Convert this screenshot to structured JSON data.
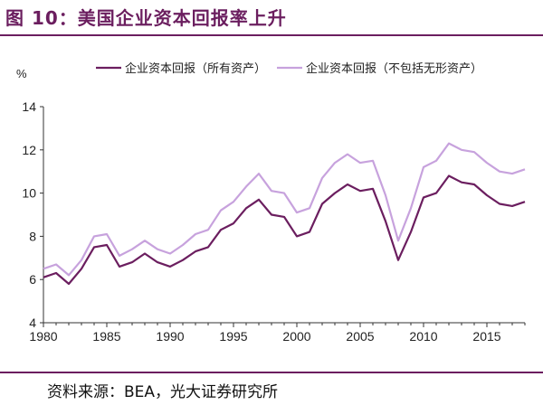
{
  "header": {
    "title": "图 10：美国企业资本回报率上升"
  },
  "footer": {
    "source": "资料来源：BEA，光大证券研究所"
  },
  "colors": {
    "accent": "#6b1e5f",
    "series1": "#6b1e5f",
    "series2": "#c7a2dd"
  },
  "chart_data": {
    "type": "line",
    "ylabel": "%",
    "xlim": [
      1980,
      2018
    ],
    "ylim": [
      4,
      14
    ],
    "yticks": [
      4,
      6,
      8,
      10,
      12,
      14
    ],
    "xticks": [
      1980,
      1985,
      1990,
      1995,
      2000,
      2005,
      2010,
      2015
    ],
    "grid": false,
    "legend": "top",
    "x": [
      1980,
      1981,
      1982,
      1983,
      1984,
      1985,
      1986,
      1987,
      1988,
      1989,
      1990,
      1991,
      1992,
      1993,
      1994,
      1995,
      1996,
      1997,
      1998,
      1999,
      2000,
      2001,
      2002,
      2003,
      2004,
      2005,
      2006,
      2007,
      2008,
      2009,
      2010,
      2011,
      2012,
      2013,
      2014,
      2015,
      2016,
      2017,
      2018
    ],
    "series": [
      {
        "name": "企业资本回报（所有资产）",
        "values": [
          6.1,
          6.3,
          5.8,
          6.5,
          7.5,
          7.6,
          6.6,
          6.8,
          7.2,
          6.8,
          6.6,
          6.9,
          7.3,
          7.5,
          8.3,
          8.6,
          9.3,
          9.7,
          9.0,
          8.9,
          8.0,
          8.2,
          9.5,
          10.0,
          10.4,
          10.1,
          10.2,
          8.7,
          6.9,
          8.2,
          9.8,
          10.0,
          10.8,
          10.5,
          10.4,
          9.9,
          9.5,
          9.4,
          9.6
        ]
      },
      {
        "name": "企业资本回报（不包括无形资产）",
        "values": [
          6.5,
          6.7,
          6.2,
          6.9,
          8.0,
          8.1,
          7.1,
          7.4,
          7.8,
          7.4,
          7.2,
          7.6,
          8.1,
          8.3,
          9.2,
          9.6,
          10.3,
          10.9,
          10.1,
          10.0,
          9.1,
          9.3,
          10.7,
          11.4,
          11.8,
          11.4,
          11.5,
          9.9,
          7.8,
          9.3,
          11.2,
          11.5,
          12.3,
          12.0,
          11.9,
          11.4,
          11.0,
          10.9,
          11.1
        ]
      }
    ]
  }
}
